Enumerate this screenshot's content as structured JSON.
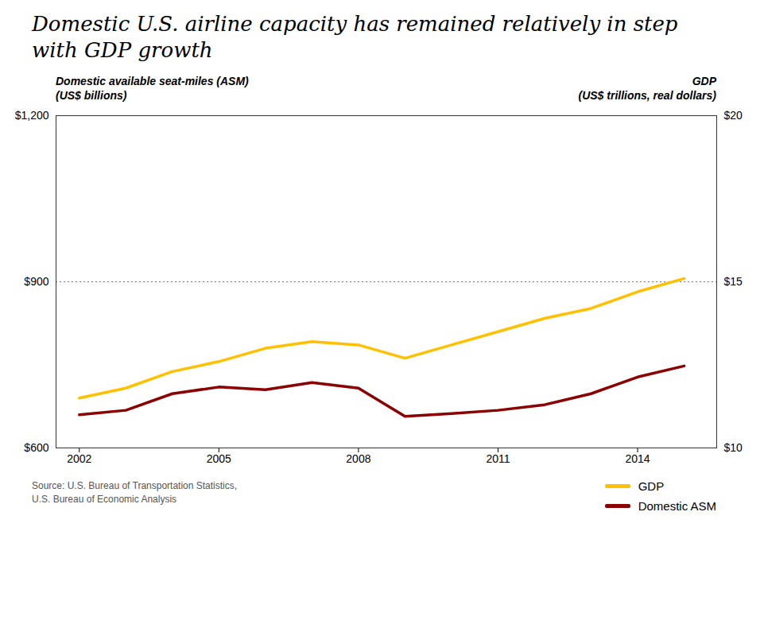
{
  "chart_data": {
    "type": "line",
    "title": "Domestic U.S. airline capacity has remained relatively in step\nwith GDP growth",
    "y_label": "Domestic available seat-miles (ASM)\n(US$ billions)",
    "y2_label": "GDP\n(US$ trillions, real dollars)",
    "source": "Source: U.S. Bureau of Transportation Statistics,\nU.S. Bureau of Economic Analysis",
    "x": [
      2002,
      2003,
      2004,
      2005,
      2006,
      2007,
      2008,
      2009,
      2010,
      2011,
      2012,
      2013,
      2014,
      2015
    ],
    "series": [
      {
        "name": "GDP",
        "color": "#FFC000",
        "axis": "y2",
        "values": [
          11.5,
          11.8,
          12.3,
          12.6,
          13.0,
          13.2,
          13.1,
          12.7,
          13.1,
          13.5,
          13.9,
          14.2,
          14.7,
          15.1
        ]
      },
      {
        "name": "Domestic ASM",
        "color": "#8B0000",
        "values": [
          660,
          668,
          698,
          710,
          705,
          718,
          708,
          657,
          662,
          668,
          678,
          698,
          728,
          748
        ]
      }
    ],
    "xlim": [
      2001.5,
      2015.7
    ],
    "xticks": [
      2002,
      2005,
      2008,
      2011,
      2014
    ],
    "ylim": [
      600,
      1200
    ],
    "yticks": [
      {
        "value": 600,
        "label": "$600"
      },
      {
        "value": 900,
        "label": "$900"
      },
      {
        "value": 1200,
        "label": "$1,200"
      }
    ],
    "y2lim": [
      10,
      20
    ],
    "y2ticks": [
      {
        "value": 10,
        "label": "$10"
      },
      {
        "value": 15,
        "label": "$15"
      },
      {
        "value": 20,
        "label": "$20"
      }
    ],
    "grid": true,
    "legend": "lower right"
  }
}
